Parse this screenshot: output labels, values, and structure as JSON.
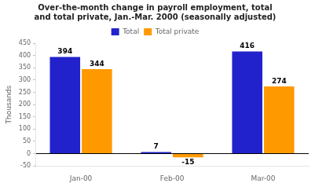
{
  "chart_data": {
    "type": "bar",
    "title": "Over-the-month change in payroll employment, total\nand total private, Jan.-Mar. 2000 (seasonally adjusted)",
    "categories": [
      "Jan-00",
      "Feb-00",
      "Mar-00"
    ],
    "series": [
      {
        "name": "Total",
        "color": "#2222cc",
        "values": [
          394,
          7,
          416
        ]
      },
      {
        "name": "Total private",
        "color": "#ff9900",
        "values": [
          344,
          -15,
          274
        ]
      }
    ],
    "ylabel": "Thousands",
    "ylim": [
      -50,
      450
    ],
    "yticks": [
      -50,
      0,
      50,
      100,
      150,
      200,
      250,
      300,
      350,
      400,
      450
    ],
    "grid": false,
    "legend": "top",
    "data_labels": true
  }
}
